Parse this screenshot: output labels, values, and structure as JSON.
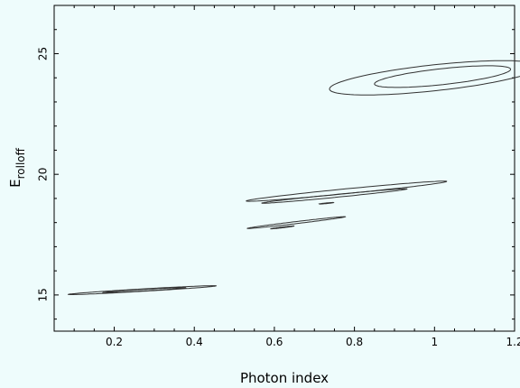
{
  "chart_data": {
    "type": "contour",
    "xlabel": "Photon index",
    "ylabel_main": "E",
    "ylabel_sub": "rolloff",
    "xlim": [
      0.05,
      1.2
    ],
    "ylim": [
      13.5,
      27
    ],
    "xticks": [
      0.2,
      0.4,
      0.6,
      0.8,
      1,
      1.2
    ],
    "xtick_labels": [
      "0.2",
      "0.4",
      "0.6",
      "0.8",
      "1",
      "1.2"
    ],
    "yticks": [
      15,
      20,
      25
    ],
    "ytick_labels": [
      "15",
      "20",
      "25"
    ],
    "grid": false,
    "colors": {
      "background": "#eefcfc",
      "line": "#333333",
      "frame": "#000000"
    },
    "contours": [
      {
        "group": "A",
        "level": "outer",
        "center": [
          0.27,
          15.2
        ],
        "a": 0.186,
        "b": 0.006,
        "angle_deg": 6.7
      },
      {
        "group": "A",
        "level": "inner",
        "center": [
          0.275,
          15.2
        ],
        "a": 0.104,
        "b": 0.0038,
        "angle_deg": 6.7
      },
      {
        "group": "B",
        "level": "outer",
        "center": [
          0.655,
          18.0
        ],
        "a": 0.126,
        "b": 0.005,
        "angle_deg": 13.6
      },
      {
        "group": "B",
        "level": "inner",
        "center": [
          0.62,
          17.8
        ],
        "a": 0.03,
        "b": 0.002,
        "angle_deg": 13.6
      },
      {
        "group": "C",
        "level": "outer",
        "center": [
          0.78,
          19.3
        ],
        "a": 0.255,
        "b": 0.012,
        "angle_deg": 11.2
      },
      {
        "group": "C",
        "level": "inner",
        "center": [
          0.75,
          19.1
        ],
        "a": 0.185,
        "b": 0.007,
        "angle_deg": 11.2
      },
      {
        "group": "C",
        "level": "core",
        "center": [
          0.73,
          18.8
        ],
        "a": 0.018,
        "b": 0.0016,
        "angle_deg": 11.2
      },
      {
        "group": "D",
        "level": "outer",
        "center": [
          1.0,
          24.0
        ],
        "a": 0.27,
        "b": 0.07,
        "angle_deg": 14.2
      },
      {
        "group": "D",
        "level": "inner",
        "center": [
          1.02,
          24.05
        ],
        "a": 0.175,
        "b": 0.043,
        "angle_deg": 14.2
      }
    ]
  }
}
